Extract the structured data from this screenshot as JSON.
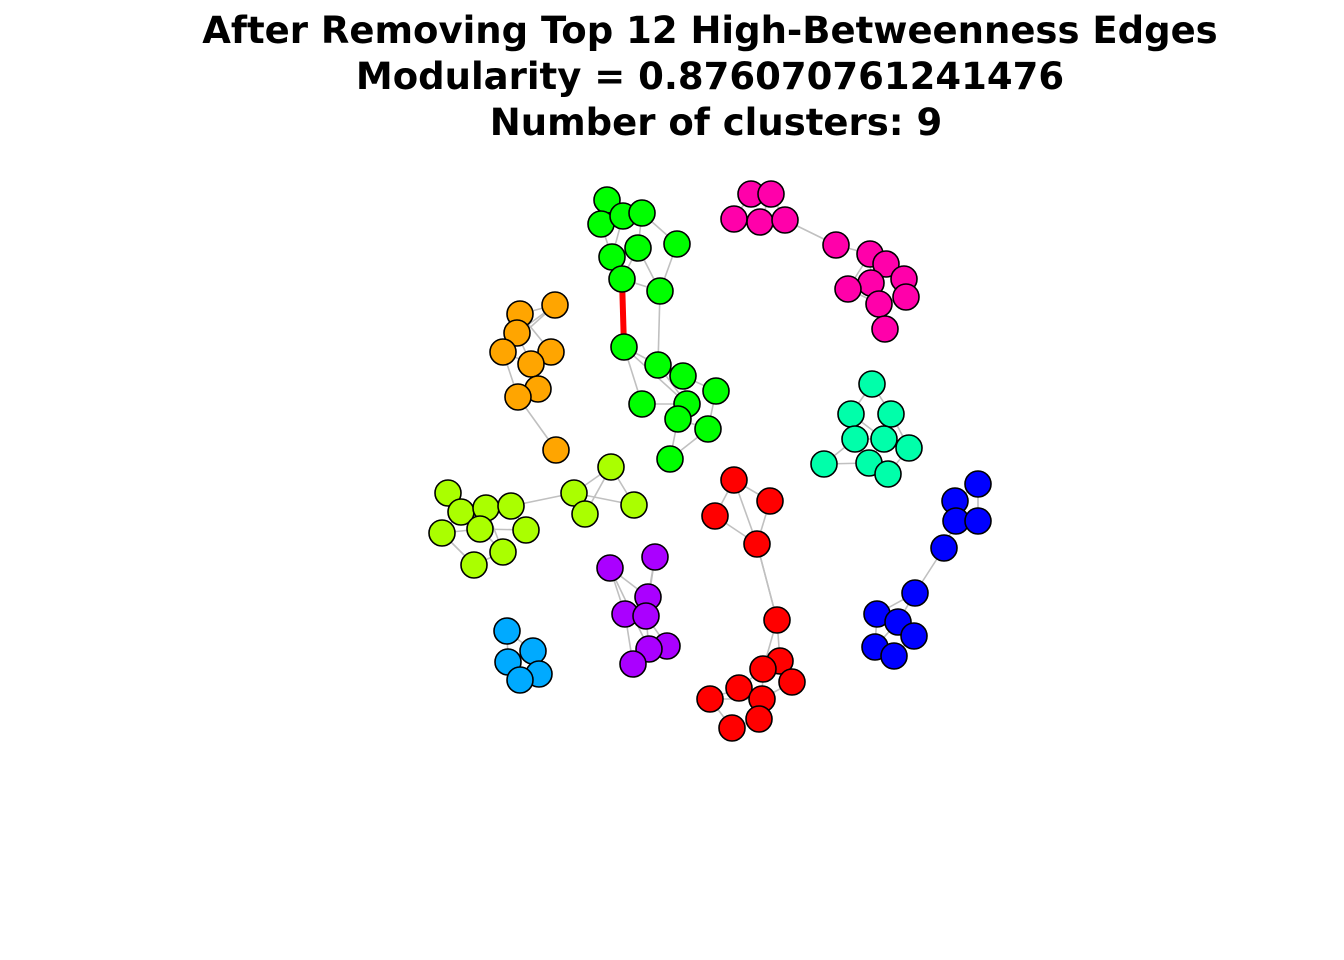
{
  "title": {
    "line1": "After Removing Top 12 High-Betweenness Edges",
    "line2": "Modularity = 0.876070761241476",
    "line3": "Number of clusters: 9"
  },
  "clusters": [
    {
      "name": "green",
      "color": "#00ff00"
    },
    {
      "name": "magenta",
      "color": "#ff00aa"
    },
    {
      "name": "orange",
      "color": "#ffa500"
    },
    {
      "name": "teal",
      "color": "#00ffaa"
    },
    {
      "name": "lime",
      "color": "#aaff00"
    },
    {
      "name": "red",
      "color": "#ff0000"
    },
    {
      "name": "blue",
      "color": "#0000ff"
    },
    {
      "name": "purple",
      "color": "#aa00ff"
    },
    {
      "name": "sky",
      "color": "#00aaff"
    }
  ],
  "highlight_color": "#ff0000",
  "edge_color": "#c0c0c0"
}
